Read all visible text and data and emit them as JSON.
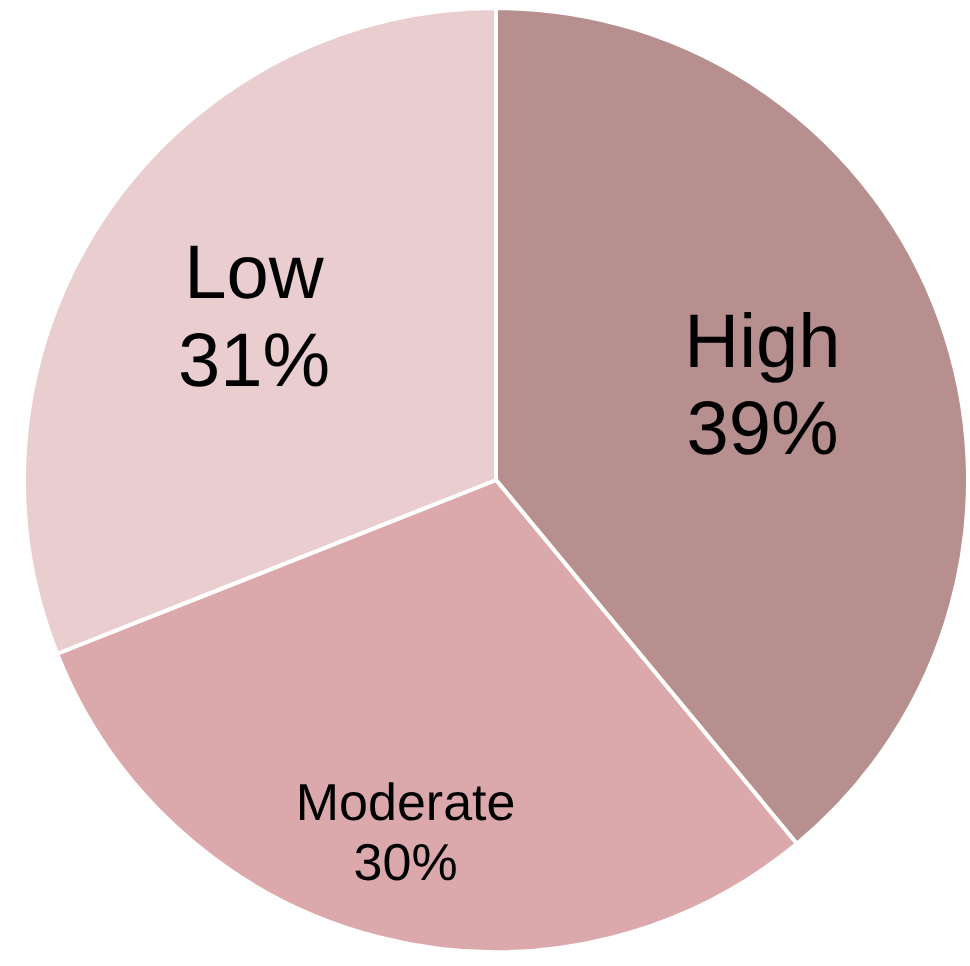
{
  "chart_data": {
    "type": "pie",
    "categories": [
      "High",
      "Moderate",
      "Low"
    ],
    "values": [
      39,
      30,
      31
    ],
    "value_labels": [
      "39%",
      "30%",
      "31%"
    ],
    "colors": [
      "#b78f8f",
      "#dba9ac",
      "#e9cdcf"
    ],
    "legend": false
  }
}
